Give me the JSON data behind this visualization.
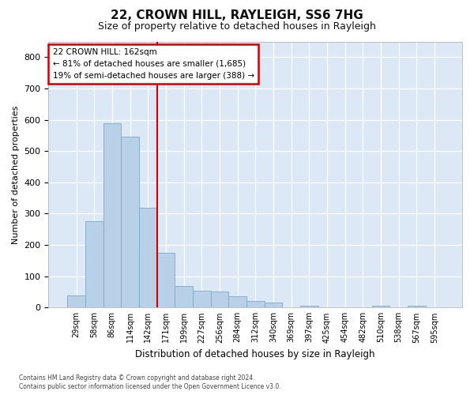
{
  "title_line1": "22, CROWN HILL, RAYLEIGH, SS6 7HG",
  "title_line2": "Size of property relative to detached houses in Rayleigh",
  "xlabel": "Distribution of detached houses by size in Rayleigh",
  "ylabel": "Number of detached properties",
  "bin_labels": [
    "29sqm",
    "58sqm",
    "86sqm",
    "114sqm",
    "142sqm",
    "171sqm",
    "199sqm",
    "227sqm",
    "256sqm",
    "284sqm",
    "312sqm",
    "340sqm",
    "369sqm",
    "397sqm",
    "425sqm",
    "454sqm",
    "482sqm",
    "510sqm",
    "538sqm",
    "567sqm",
    "595sqm"
  ],
  "bar_values": [
    38,
    275,
    590,
    545,
    320,
    175,
    70,
    55,
    50,
    35,
    20,
    15,
    0,
    5,
    0,
    0,
    0,
    5,
    0,
    5,
    0
  ],
  "bar_color": "#b8d0e8",
  "bar_edge_color": "#7aaac8",
  "vline_color": "#cc0000",
  "annotation_text": "22 CROWN HILL: 162sqm\n← 81% of detached houses are smaller (1,685)\n19% of semi-detached houses are larger (388) →",
  "annotation_box_color": "#ffffff",
  "annotation_box_edge": "#cc0000",
  "ylim": [
    0,
    850
  ],
  "yticks": [
    0,
    100,
    200,
    300,
    400,
    500,
    600,
    700,
    800
  ],
  "footnote": "Contains HM Land Registry data © Crown copyright and database right 2024.\nContains public sector information licensed under the Open Government Licence v3.0.",
  "plot_background": "#dce8f5"
}
